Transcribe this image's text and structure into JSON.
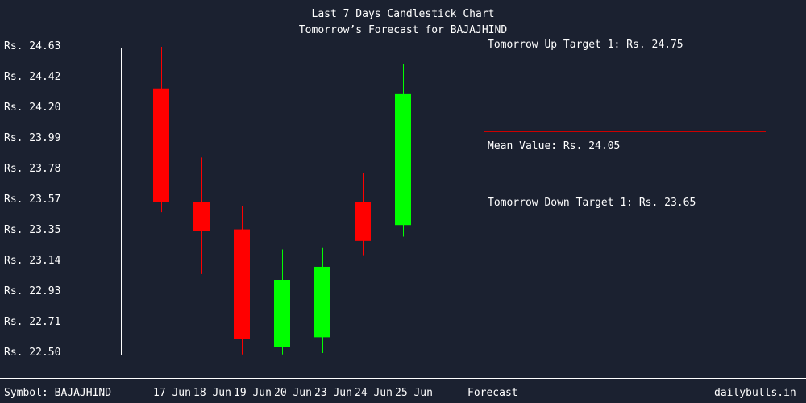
{
  "chart_data": {
    "type": "candlestick",
    "title": "Last 7 Days Candlestick Chart",
    "subtitle": "Tomorrow’s Forecast for BAJAJHIND",
    "ylabel": "",
    "xlabel": "",
    "ylim": [
      22.5,
      24.63
    ],
    "y_ticks": [
      "Rs. 24.63",
      "Rs. 24.42",
      "Rs. 24.20",
      "Rs. 23.99",
      "Rs. 23.78",
      "Rs. 23.57",
      "Rs. 23.35",
      "Rs. 23.14",
      "Rs. 22.93",
      "Rs. 22.71",
      "Rs. 22.50"
    ],
    "y_tick_values": [
      24.63,
      24.42,
      24.2,
      23.99,
      23.78,
      23.57,
      23.35,
      23.14,
      22.93,
      22.71,
      22.5
    ],
    "categories": [
      "17 Jun",
      "18 Jun",
      "19 Jun",
      "20 Jun",
      "23 Jun",
      "24 Jun",
      "25 Jun"
    ],
    "candles": [
      {
        "date": "17 Jun",
        "open": 24.34,
        "high": 24.63,
        "low": 23.48,
        "close": 23.55
      },
      {
        "date": "18 Jun",
        "open": 23.55,
        "high": 23.86,
        "low": 23.05,
        "close": 23.35
      },
      {
        "date": "19 Jun",
        "open": 23.36,
        "high": 23.52,
        "low": 22.49,
        "close": 22.6
      },
      {
        "date": "20 Jun",
        "open": 22.54,
        "high": 23.22,
        "low": 22.49,
        "close": 23.01
      },
      {
        "date": "23 Jun",
        "open": 22.61,
        "high": 23.23,
        "low": 22.5,
        "close": 23.1
      },
      {
        "date": "24 Jun",
        "open": 23.55,
        "high": 23.75,
        "low": 23.18,
        "close": 23.28
      },
      {
        "date": "25 Jun",
        "open": 23.39,
        "high": 24.51,
        "low": 23.31,
        "close": 24.3
      }
    ],
    "up_color": "#00ff00",
    "down_color": "#ff0000",
    "forecast": {
      "label": "Forecast",
      "up_target_text": "Tomorrow Up Target 1: Rs. 24.75",
      "mean_text": "Mean Value: Rs. 24.05",
      "down_target_text": "Tomorrow Down Target 1: Rs. 23.65",
      "up_color": "#d4a017",
      "mean_color": "#cc0000",
      "down_color": "#00cc00"
    }
  },
  "footer": {
    "symbol": "Symbol: BAJAJHIND",
    "site": "dailybulls.in"
  },
  "colors": {
    "background": "#1b2130",
    "text": "#ffffff"
  }
}
